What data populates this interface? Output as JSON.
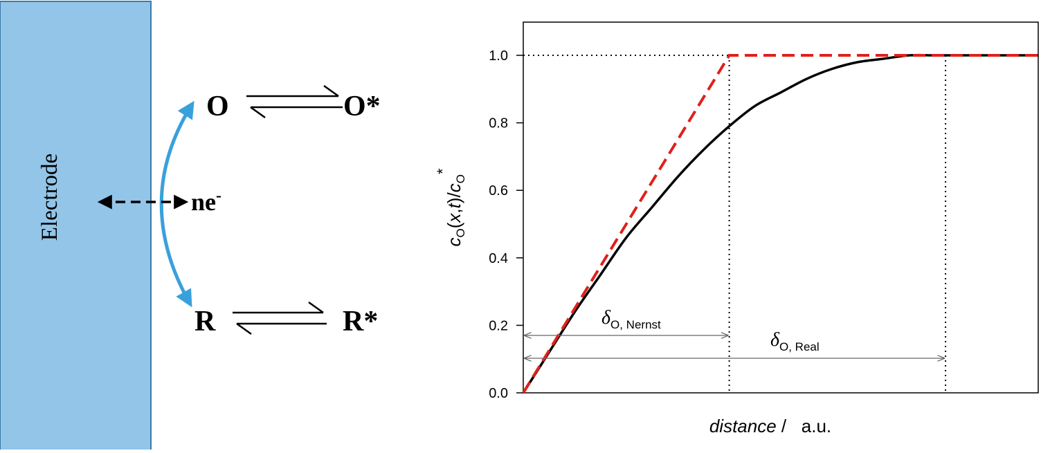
{
  "left_diagram": {
    "electrode_label": "Electrode",
    "species_oxidized": "O",
    "species_oxidized_bulk": "O*",
    "species_reduced": "R",
    "species_reduced_bulk": "R*",
    "electron_base": "ne",
    "electron_sup": "-",
    "colors": {
      "electrode_fill": "#92c5e8",
      "electrode_stroke": "#3d7aa8",
      "transfer_arrow": "#3aa0dc",
      "text": "#000000"
    }
  },
  "chart_data": {
    "type": "line",
    "xlabel_italic": "distance",
    "xlabel_rest": " /   a.u.",
    "ylabel_parts": [
      "c",
      "O",
      "(",
      "x",
      ",",
      "t",
      ")/",
      "c",
      "O",
      "*"
    ],
    "yticks": [
      "0.0",
      "0.2",
      "0.4",
      "0.6",
      "0.8",
      "1.0"
    ],
    "ylim": [
      0,
      1.1
    ],
    "xlim": [
      0,
      10
    ],
    "series": [
      {
        "style": "solid",
        "color": "#000000",
        "x": [
          0,
          0.5,
          1,
          1.5,
          2,
          2.5,
          3,
          3.5,
          4,
          4.5,
          5,
          5.5,
          6,
          6.5,
          7,
          7.5,
          8,
          8.5,
          9,
          9.5,
          10
        ],
        "y": [
          0,
          0.12,
          0.24,
          0.35,
          0.46,
          0.55,
          0.64,
          0.72,
          0.79,
          0.85,
          0.89,
          0.93,
          0.96,
          0.98,
          0.99,
          1.0,
          1.0,
          1.0,
          1.0,
          1.0,
          1.0
        ]
      },
      {
        "style": "dashed",
        "color": "#e0201b",
        "x": [
          0,
          4,
          10
        ],
        "y": [
          0,
          1.0,
          1.0
        ]
      }
    ],
    "reference_line_y": 1.0,
    "guide_x": [
      4,
      8.2
    ],
    "annotations": {
      "nernst_symbol": "δ",
      "nernst_sub": "O, Nernst",
      "nernst_x_end": 4,
      "real_symbol": "δ",
      "real_sub": "O, Real",
      "real_x_end": 8.2
    }
  }
}
